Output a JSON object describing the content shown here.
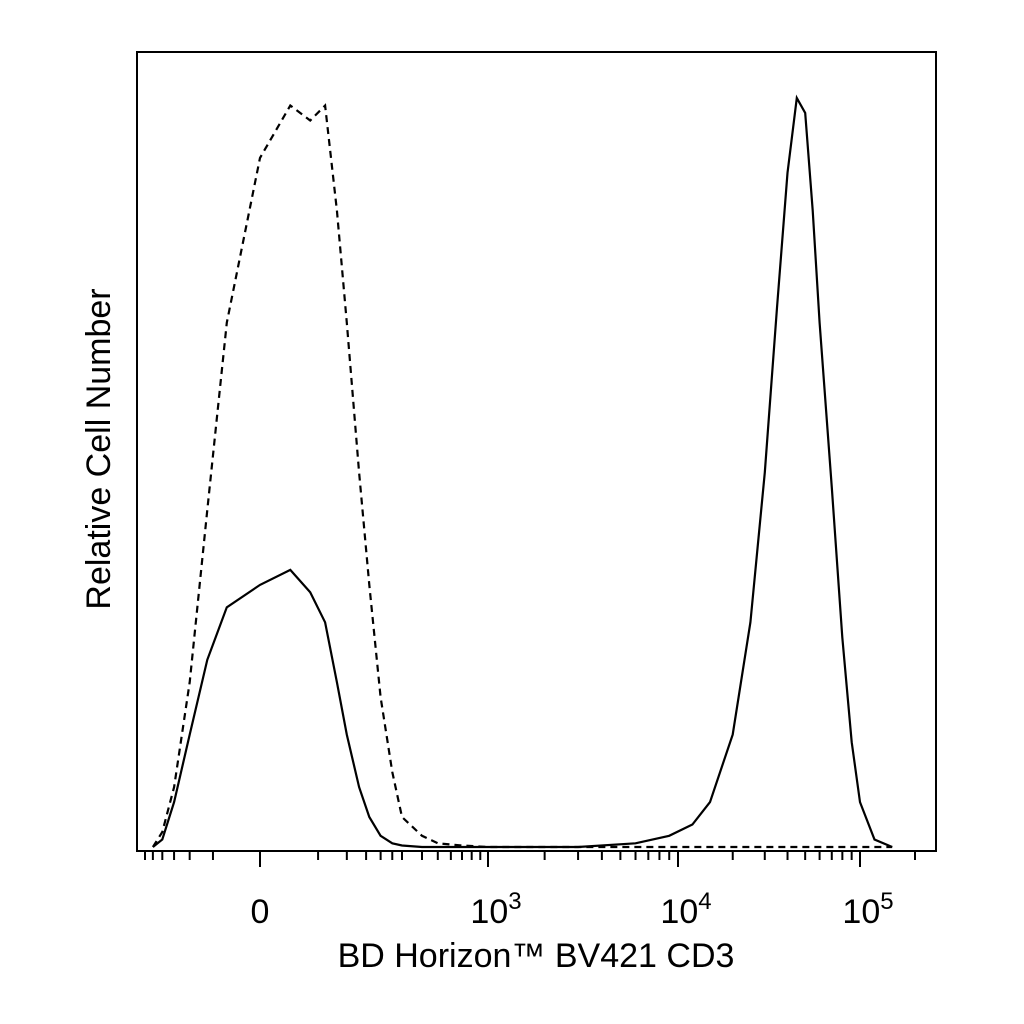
{
  "chart_data": {
    "type": "line",
    "title": "",
    "xlabel": "BD Horizon™ BV421 CD3",
    "ylabel": "Relative Cell Number",
    "x_scale": "biexponential",
    "xlim": [
      -300,
      200000
    ],
    "ylim": [
      0,
      100
    ],
    "grid": false,
    "legend": "none",
    "x_tick_labels": [
      {
        "value": 0,
        "base": "0",
        "exp": ""
      },
      {
        "value": 1000,
        "base": "10",
        "exp": "3"
      },
      {
        "value": 10000,
        "base": "10",
        "exp": "4"
      },
      {
        "value": 100000,
        "base": "10",
        "exp": "5"
      }
    ],
    "series": [
      {
        "style": "dashed",
        "color": "#000000",
        "x": [
          -250,
          -200,
          -150,
          -100,
          -60,
          -30,
          0,
          20,
          40,
          60,
          80,
          100,
          130,
          160,
          200,
          250,
          300,
          400,
          500,
          700,
          1000,
          3000,
          10000,
          30000,
          100000,
          150000
        ],
        "y": [
          0,
          2,
          8,
          22,
          45,
          70,
          92,
          99,
          97,
          99,
          85,
          70,
          50,
          35,
          20,
          10,
          4,
          1.5,
          0.5,
          0.2,
          0,
          0,
          0,
          0,
          0,
          0
        ]
      },
      {
        "style": "solid",
        "color": "#000000",
        "x": [
          -250,
          -200,
          -150,
          -100,
          -60,
          -30,
          0,
          20,
          40,
          60,
          80,
          100,
          130,
          160,
          200,
          250,
          300,
          400,
          500,
          1000,
          3000,
          6000,
          9000,
          12000,
          15000,
          20000,
          25000,
          30000,
          35000,
          40000,
          45000,
          50000,
          55000,
          60000,
          70000,
          80000,
          90000,
          100000,
          120000,
          150000
        ],
        "y": [
          0,
          1,
          6,
          15,
          25,
          32,
          35,
          37,
          34,
          30,
          22,
          15,
          8,
          4,
          1.5,
          0.5,
          0.2,
          0,
          0,
          0,
          0,
          0.5,
          1.5,
          3,
          6,
          15,
          30,
          50,
          72,
          90,
          100,
          98,
          85,
          70,
          48,
          28,
          14,
          6,
          1,
          0
        ]
      }
    ]
  }
}
